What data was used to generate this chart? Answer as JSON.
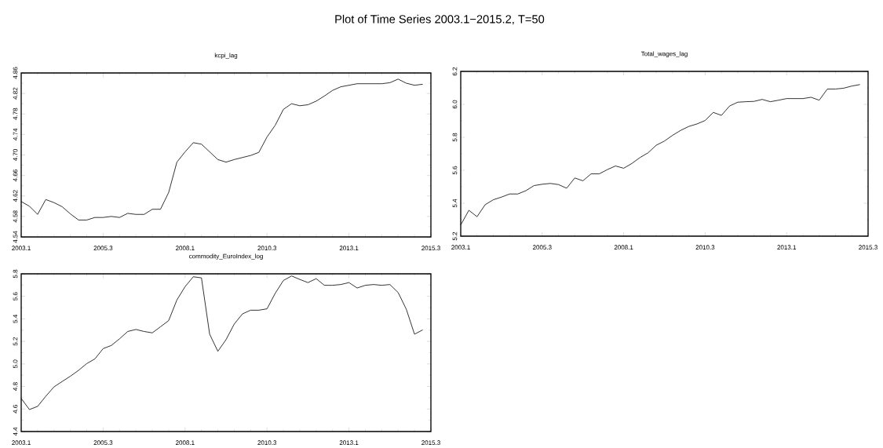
{
  "chart_data": [
    {
      "type": "line",
      "title": "kcpi_lag",
      "annotations": [
        "Plot of Time Series 2003.1−2015.2, T=50"
      ],
      "categories": [
        "2003.1",
        null,
        null,
        null,
        null,
        null,
        null,
        null,
        null,
        null,
        "2005.3",
        null,
        null,
        null,
        null,
        null,
        null,
        null,
        null,
        null,
        "2008.1",
        null,
        null,
        null,
        null,
        null,
        null,
        null,
        null,
        null,
        "2010.3",
        null,
        null,
        null,
        null,
        null,
        null,
        null,
        null,
        null,
        "2013.1",
        null,
        null,
        null,
        null,
        null,
        null,
        null,
        null,
        null,
        "2015.3"
      ],
      "series": [
        {
          "color": "#000000",
          "values": [
            4.609,
            4.6,
            4.584,
            4.613,
            4.607,
            4.599,
            4.585,
            4.573,
            4.573,
            4.578,
            4.578,
            4.58,
            4.578,
            4.586,
            4.584,
            4.584,
            4.594,
            4.594,
            4.627,
            4.686,
            4.706,
            4.724,
            4.721,
            4.706,
            4.691,
            4.686,
            4.691,
            4.695,
            4.699,
            4.705,
            4.735,
            4.758,
            4.789,
            4.8,
            4.796,
            4.798,
            4.805,
            4.815,
            4.826,
            4.833,
            4.836,
            4.839,
            4.839,
            4.839,
            4.839,
            4.841,
            4.848,
            4.84,
            4.836,
            4.838,
            null
          ]
        }
      ],
      "ylim": [
        4.54,
        4.86
      ],
      "yticks": [
        4.54,
        4.58,
        4.62,
        4.66,
        {
          "value": 4.7,
          "label": "4.70"
        },
        4.74,
        4.78,
        4.82,
        4.86
      ]
    },
    {
      "type": "line",
      "title": "Total_wages_lag",
      "categories": [
        "2003.1",
        null,
        null,
        null,
        null,
        null,
        null,
        null,
        null,
        null,
        "2005.3",
        null,
        null,
        null,
        null,
        null,
        null,
        null,
        null,
        null,
        "2008.1",
        null,
        null,
        null,
        null,
        null,
        null,
        null,
        null,
        null,
        "2010.3",
        null,
        null,
        null,
        null,
        null,
        null,
        null,
        null,
        null,
        "2013.1",
        null,
        null,
        null,
        null,
        null,
        null,
        null,
        null,
        null,
        "2015.3"
      ],
      "series": [
        {
          "color": "#000000",
          "values": [
            5.268,
            5.357,
            5.318,
            5.391,
            5.421,
            5.437,
            5.456,
            5.456,
            5.476,
            5.507,
            5.515,
            5.52,
            5.513,
            5.491,
            5.553,
            5.536,
            5.578,
            5.578,
            5.604,
            5.626,
            5.612,
            5.641,
            5.677,
            5.706,
            5.752,
            5.777,
            5.812,
            5.842,
            5.866,
            5.881,
            5.902,
            5.951,
            5.933,
            5.99,
            6.013,
            6.016,
            6.018,
            6.03,
            6.016,
            6.025,
            6.035,
            6.035,
            6.035,
            6.043,
            6.025,
            6.093,
            6.093,
            6.098,
            6.111,
            6.12,
            null
          ]
        }
      ],
      "ylim": [
        5.2,
        6.2
      ],
      "yticks": [
        5.2,
        5.4,
        5.6,
        5.8,
        {
          "value": 6.0,
          "label": "6.0"
        },
        6.2
      ]
    },
    {
      "type": "line",
      "title": "commodity_EuroIndex_log",
      "categories": [
        "2003.1",
        null,
        null,
        null,
        null,
        null,
        null,
        null,
        null,
        null,
        "2005.3",
        null,
        null,
        null,
        null,
        null,
        null,
        null,
        null,
        null,
        "2008.1",
        null,
        null,
        null,
        null,
        null,
        null,
        null,
        null,
        null,
        "2010.3",
        null,
        null,
        null,
        null,
        null,
        null,
        null,
        null,
        null,
        "2013.1",
        null,
        null,
        null,
        null,
        null,
        null,
        null,
        null,
        null,
        "2015.3"
      ],
      "series": [
        {
          "color": "#000000",
          "values": [
            4.694,
            4.595,
            4.623,
            4.713,
            4.796,
            4.844,
            4.891,
            4.943,
            5.003,
            5.045,
            5.136,
            5.164,
            5.223,
            5.288,
            5.306,
            5.288,
            5.276,
            5.33,
            5.385,
            5.568,
            5.686,
            5.774,
            5.764,
            5.264,
            5.112,
            5.216,
            5.354,
            5.444,
            5.477,
            5.477,
            5.489,
            5.627,
            5.741,
            5.781,
            5.75,
            5.722,
            5.757,
            5.698,
            5.698,
            5.705,
            5.722,
            5.674,
            5.698,
            5.705,
            5.698,
            5.705,
            5.634,
            5.485,
            5.264,
            5.302,
            null
          ]
        }
      ],
      "ylim": [
        4.4,
        5.8
      ],
      "yticks": [
        4.4,
        4.6,
        4.8,
        {
          "value": 5.0,
          "label": "5.0"
        },
        5.2,
        5.4,
        5.6,
        5.8
      ]
    }
  ]
}
